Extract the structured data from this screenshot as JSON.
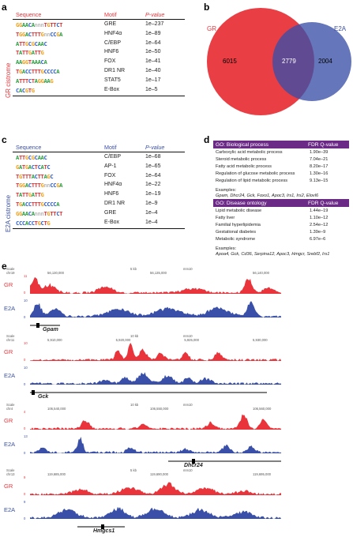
{
  "colors": {
    "red": "#e8343a",
    "blue": "#3a50a8",
    "purple": "#6b2a86",
    "gr_label": "#e8343a",
    "e2a_label": "#3a50a8"
  },
  "panel_a": {
    "letter": "a",
    "side_label": "GR cistrome",
    "headers": {
      "sequence": "Sequence",
      "motif": "Motif",
      "pvalue": "P-value"
    },
    "rows": [
      {
        "logo": "GGAACAnnnTGTTCT",
        "motif": "GRE",
        "p": "1e–237"
      },
      {
        "logo": "TGGACTTTGnnCCGA",
        "motif": "HNF4α",
        "p": "1e–89"
      },
      {
        "logo": "ATTGCGCAAC",
        "motif": "C/EBP",
        "p": "1e–64"
      },
      {
        "logo": "TATTGATTG",
        "motif": "HNF6",
        "p": "1e–50"
      },
      {
        "logo": "AAGGTAAACA",
        "motif": "FOX",
        "p": "1e–41"
      },
      {
        "logo": "TGACCTTTGCCCCA",
        "motif": "DR1 NR",
        "p": "1e–40"
      },
      {
        "logo": "ATTTCTAGGAAG",
        "motif": "STAT5",
        "p": "1e–17"
      },
      {
        "logo": "CACGTG",
        "motif": "E-Box",
        "p": "1e–5"
      }
    ]
  },
  "panel_b": {
    "letter": "b",
    "gr_label": "GR",
    "e2a_label": "E2A",
    "gr_only": "6015",
    "overlap": "2779",
    "e2a_only": "2004"
  },
  "panel_c": {
    "letter": "c",
    "side_label": "E2A cistrome",
    "headers": {
      "sequence": "Sequence",
      "motif": "Motif",
      "pvalue": "P-value"
    },
    "rows": [
      {
        "logo": "ATTGCGCAAC",
        "motif": "C/EBP",
        "p": "1e–68"
      },
      {
        "logo": "GATGACTCATC",
        "motif": "AP-1",
        "p": "1e–65"
      },
      {
        "logo": "TGTTTACTTAGC",
        "motif": "FOX",
        "p": "1e–64"
      },
      {
        "logo": "TGGACTTTGnnCCGA",
        "motif": "HNF4α",
        "p": "1e–22"
      },
      {
        "logo": "TATTGATTG",
        "motif": "HNF6",
        "p": "1e–19"
      },
      {
        "logo": "TGACCTTTGCCCCA",
        "motif": "DR1 NR",
        "p": "1e–9"
      },
      {
        "logo": "GGAACAnnnTGTTCT",
        "motif": "GRE",
        "p": "1e–4"
      },
      {
        "logo": "CCCACCTGCTG",
        "motif": "E-Box",
        "p": "1e–4"
      }
    ]
  },
  "panel_d": {
    "letter": "d",
    "bio": {
      "title": "GO: Biological process",
      "col": "FDR Q-value",
      "rows": [
        {
          "term": "Carboxylic acid metabolic process",
          "q": "1.90e–39"
        },
        {
          "term": "Steroid metabolic process",
          "q": "7.04e–21"
        },
        {
          "term": "Fatty acid metabolic process",
          "q": "8.20e–17"
        },
        {
          "term": "Regulation of glucose metabolic process",
          "q": "1.30e–16"
        },
        {
          "term": "Regulation of lipid metabolic process",
          "q": "9.13e–15"
        }
      ],
      "examples_label": "Examples:",
      "examples": "Gpam, Dhcr24, Gck, Foxo1, Apoc3, Irs1, Irs2, Elovl6"
    },
    "disease": {
      "title": "GO: Disease ontology",
      "col": "FDR Q-value",
      "rows": [
        {
          "term": "Lipid metabolic disease",
          "q": "1.44e–19"
        },
        {
          "term": "Fatty liver",
          "q": "1.10e–12"
        },
        {
          "term": "Familial hyperlipidemia",
          "q": "2.54e–12"
        },
        {
          "term": "Gestational diabetes",
          "q": "1.39e–9"
        },
        {
          "term": "Metabolic syndrome",
          "q": "6.97e–6"
        }
      ],
      "examples_label": "Examples:",
      "examples": "Apoa4, Gck, Cd36, Serpina12, Apoc3, Hmgcr, Srebf2, Irs1"
    }
  },
  "panel_e": {
    "letter": "e",
    "tracks": [
      {
        "gene": "Gpam",
        "chr": "chr19",
        "scale_label": "5 kb",
        "assembly": "mm10",
        "coords": [
          "56,130,000",
          "56,135,000",
          "56,140,000"
        ],
        "gr_max": "11",
        "e2a_max": "10",
        "gr_label": "GR",
        "e2a_label": "E2A",
        "scale_word": "Scale",
        "zero": "0"
      },
      {
        "gene": "Gck",
        "chr": "chr11",
        "scale_label": "10 kb",
        "assembly": "mm10",
        "coords": [
          "5,910,000",
          "5,920,000",
          "5,925,000",
          "5,930,000"
        ],
        "gr_max": "10",
        "e2a_max": "10",
        "gr_label": "GR",
        "e2a_label": "E2A",
        "scale_word": "Scale",
        "zero": "0"
      },
      {
        "gene": "Dhcr24",
        "chr": "chr4",
        "scale_label": "10 kb",
        "assembly": "mm10",
        "coords": [
          "106,540,000",
          "106,550,000",
          "106,560,000"
        ],
        "gr_max": "4",
        "e2a_max": "13",
        "gr_label": "GR",
        "e2a_label": "E2A",
        "scale_word": "Scale",
        "zero": "0"
      },
      {
        "gene": "Hmgcs1",
        "chr": "chr13",
        "scale_label": "5 kb",
        "assembly": "mm10",
        "coords": [
          "119,685,000",
          "119,690,000",
          "119,695,000"
        ],
        "gr_max": "9",
        "e2a_max": "9",
        "gr_label": "GR",
        "e2a_label": "E2A",
        "scale_word": "Scale",
        "zero": "0"
      }
    ]
  }
}
